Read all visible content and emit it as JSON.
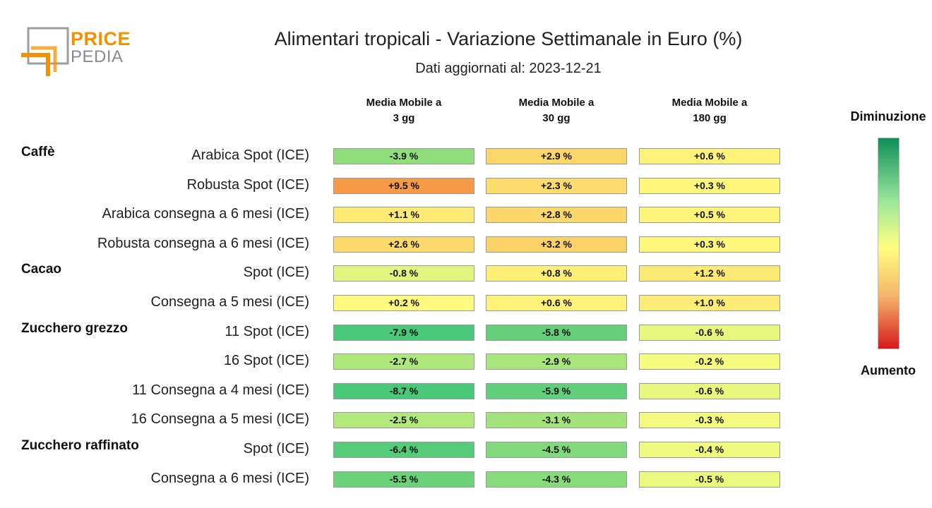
{
  "logo": {
    "line1": "PRICE",
    "line2": "PEDIA"
  },
  "title": "Alimentari tropicali - Variazione Settimanale in Euro (%)",
  "subtitle": "Dati aggiornati al: 2023-12-21",
  "colors": {
    "decrease": "#0e8f5a",
    "neutral": "#ffff80",
    "increase": "#d7191c"
  },
  "legend": {
    "top": "Diminuzione",
    "bottom": "Aumento"
  },
  "chart_data": {
    "type": "heatmap",
    "title": "Alimentari tropicali - Variazione Settimanale in Euro (%)",
    "subtitle": "Dati aggiornati al: 2023-12-21",
    "columns": [
      {
        "line1": "Media Mobile a",
        "line2": "3 gg"
      },
      {
        "line1": "Media Mobile a",
        "line2": "30 gg"
      },
      {
        "line1": "Media Mobile a",
        "line2": "180 gg"
      }
    ],
    "groups": [
      {
        "name": "Caffè",
        "rows": [
          {
            "label": "Arabica Spot (ICE)",
            "values": [
              -3.9,
              2.9,
              0.6
            ]
          },
          {
            "label": "Robusta Spot (ICE)",
            "values": [
              9.5,
              2.3,
              0.3
            ]
          },
          {
            "label": "Arabica consegna a 6 mesi (ICE)",
            "values": [
              1.1,
              2.8,
              0.5
            ]
          },
          {
            "label": "Robusta consegna a 6 mesi (ICE)",
            "values": [
              2.6,
              3.2,
              0.3
            ]
          }
        ]
      },
      {
        "name": "Cacao",
        "rows": [
          {
            "label": "Spot (ICE)",
            "values": [
              -0.8,
              0.8,
              1.2
            ]
          },
          {
            "label": "Consegna a 5 mesi (ICE)",
            "values": [
              0.2,
              0.6,
              1.0
            ]
          }
        ]
      },
      {
        "name": "Zucchero grezzo",
        "rows": [
          {
            "label": "11 Spot (ICE)",
            "values": [
              -7.9,
              -5.8,
              -0.6
            ]
          },
          {
            "label": "16 Spot (ICE)",
            "values": [
              -2.7,
              -2.9,
              -0.2
            ]
          },
          {
            "label": "11 Consegna a 4 mesi (ICE)",
            "values": [
              -8.7,
              -5.9,
              -0.6
            ]
          },
          {
            "label": "16 Consegna a 5 mesi (ICE)",
            "values": [
              -2.5,
              -3.1,
              -0.3
            ]
          }
        ]
      },
      {
        "name": "Zucchero raffinato",
        "rows": [
          {
            "label": "Spot (ICE)",
            "values": [
              -6.4,
              -4.5,
              -0.4
            ]
          },
          {
            "label": "Consegna a 6 mesi (ICE)",
            "values": [
              -5.5,
              -4.3,
              -0.5
            ]
          }
        ]
      }
    ],
    "legend": {
      "top": "Diminuzione",
      "bottom": "Aumento"
    }
  }
}
